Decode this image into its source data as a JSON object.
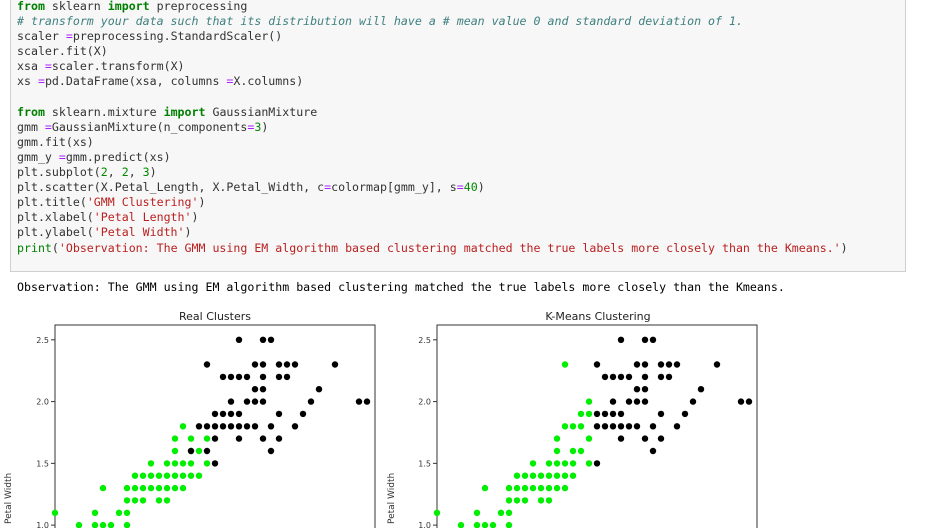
{
  "code_lines": [
    [
      [
        "kw",
        "from"
      ],
      [
        "",
        "sklearn "
      ],
      [
        "kw",
        "import"
      ],
      [
        "",
        "preprocessing"
      ]
    ],
    [
      [
        "cm",
        "# transform your data such that its distribution will have a # mean value 0 and standard deviation of 1."
      ]
    ],
    [
      [
        "",
        "scaler "
      ],
      [
        "op",
        "="
      ],
      [
        "",
        "preprocessing.StandardScaler()"
      ]
    ],
    [
      [
        "",
        "scaler.fit(X)"
      ]
    ],
    [
      [
        "",
        "xsa "
      ],
      [
        "op",
        "="
      ],
      [
        "",
        "scaler.transform(X)"
      ]
    ],
    [
      [
        "",
        "xs "
      ],
      [
        "op",
        "="
      ],
      [
        "",
        "pd.DataFrame(xsa, columns "
      ],
      [
        "op",
        "="
      ],
      [
        "",
        "X.columns)"
      ]
    ],
    [
      [
        "",
        ""
      ]
    ],
    [
      [
        "kw",
        "from"
      ],
      [
        "",
        "sklearn.mixture "
      ],
      [
        "kw",
        "import"
      ],
      [
        "",
        "GaussianMixture"
      ]
    ],
    [
      [
        "",
        "gmm "
      ],
      [
        "op",
        "="
      ],
      [
        "",
        "GaussianMixture(n_components"
      ],
      [
        "op",
        "="
      ],
      [
        "num",
        "3"
      ],
      [
        "",
        ")"
      ]
    ],
    [
      [
        "",
        "gmm.fit(xs)"
      ]
    ],
    [
      [
        "",
        "gmm_y "
      ],
      [
        "op",
        "="
      ],
      [
        "",
        "gmm.predict(xs)"
      ]
    ],
    [
      [
        "",
        "plt.subplot("
      ],
      [
        "num",
        "2"
      ],
      [
        "",
        ", "
      ],
      [
        "num",
        "2"
      ],
      [
        "",
        ", "
      ],
      [
        "num",
        "3"
      ],
      [
        "",
        ")"
      ]
    ],
    [
      [
        "",
        "plt.scatter(X.Petal_Length, X.Petal_Width, c"
      ],
      [
        "op",
        "="
      ],
      [
        "",
        "colormap[gmm_y], s"
      ],
      [
        "op",
        "="
      ],
      [
        "num",
        "40"
      ],
      [
        "",
        ")"
      ]
    ],
    [
      [
        "",
        "plt.title("
      ],
      [
        "st",
        "'GMM Clustering'"
      ],
      [
        "",
        ")"
      ]
    ],
    [
      [
        "",
        "plt.xlabel("
      ],
      [
        "st",
        "'Petal Length'"
      ],
      [
        "",
        ")"
      ]
    ],
    [
      [
        "",
        "plt.ylabel("
      ],
      [
        "st",
        "'Petal Width'"
      ],
      [
        "",
        ")"
      ]
    ],
    [
      [
        "kw2",
        "print"
      ],
      [
        "",
        "("
      ],
      [
        "st",
        "'Observation: The GMM using EM algorithm based clustering matched the true labels more closely than the Kmeans.'"
      ],
      [
        "",
        ")"
      ]
    ]
  ],
  "output_text": "Observation: The GMM using EM algorithm based clustering matched the true labels more closely than the Kmeans.",
  "colors": {
    "green": "#00ee00",
    "black": "#000000"
  },
  "chart_data": [
    {
      "type": "scatter",
      "title": "Real Clusters",
      "ylabel": "Petal Width",
      "xlabel": "",
      "ylim": [
        0.92,
        2.62
      ],
      "xlim": [
        3.0,
        7.0
      ],
      "yticks": [
        "1.0",
        "1.5",
        "2.0",
        "2.5"
      ],
      "ytick_values": [
        1.0,
        1.5,
        2.0,
        2.5
      ],
      "series": [
        {
          "color": "#00ee00",
          "points": [
            [
              3.0,
              1.1
            ],
            [
              3.3,
              1.0
            ],
            [
              3.5,
              1.0
            ],
            [
              3.6,
              1.0
            ],
            [
              3.7,
              1.0
            ],
            [
              3.9,
              1.0
            ],
            [
              3.5,
              1.1
            ],
            [
              3.8,
              1.1
            ],
            [
              3.9,
              1.1
            ],
            [
              3.6,
              1.3
            ],
            [
              3.9,
              1.2
            ],
            [
              4.0,
              1.2
            ],
            [
              3.9,
              1.3
            ],
            [
              4.0,
              1.3
            ],
            [
              4.1,
              1.3
            ],
            [
              4.2,
              1.3
            ],
            [
              4.3,
              1.3
            ],
            [
              4.4,
              1.3
            ],
            [
              4.5,
              1.3
            ],
            [
              4.1,
              1.2
            ],
            [
              4.3,
              1.2
            ],
            [
              4.4,
              1.2
            ],
            [
              4.6,
              1.3
            ],
            [
              4.0,
              1.4
            ],
            [
              4.1,
              1.4
            ],
            [
              4.2,
              1.4
            ],
            [
              4.3,
              1.4
            ],
            [
              4.4,
              1.4
            ],
            [
              4.5,
              1.4
            ],
            [
              4.6,
              1.4
            ],
            [
              4.5,
              1.5
            ],
            [
              4.4,
              1.5
            ],
            [
              4.6,
              1.5
            ],
            [
              4.7,
              1.4
            ],
            [
              4.8,
              1.4
            ],
            [
              4.7,
              1.5
            ],
            [
              4.9,
              1.5
            ],
            [
              4.2,
              1.5
            ],
            [
              4.5,
              1.6
            ],
            [
              4.7,
              1.6
            ],
            [
              4.8,
              1.6
            ],
            [
              4.9,
              1.7
            ],
            [
              4.6,
              1.8
            ],
            [
              4.5,
              1.7
            ],
            [
              4.7,
              1.7
            ]
          ]
        },
        {
          "color": "#000000",
          "points": [
            [
              5.3,
              2.5
            ],
            [
              5.6,
              2.5
            ],
            [
              5.7,
              2.5
            ],
            [
              4.9,
              2.3
            ],
            [
              5.5,
              2.3
            ],
            [
              5.6,
              2.3
            ],
            [
              5.8,
              2.3
            ],
            [
              5.9,
              2.3
            ],
            [
              6.0,
              2.3
            ],
            [
              6.5,
              2.3
            ],
            [
              5.1,
              2.2
            ],
            [
              5.2,
              2.2
            ],
            [
              5.3,
              2.2
            ],
            [
              5.4,
              2.2
            ],
            [
              5.6,
              2.2
            ],
            [
              5.8,
              2.2
            ],
            [
              5.9,
              2.2
            ],
            [
              5.5,
              2.1
            ],
            [
              5.6,
              2.1
            ],
            [
              6.3,
              2.1
            ],
            [
              5.2,
              2.0
            ],
            [
              5.4,
              2.0
            ],
            [
              5.5,
              2.0
            ],
            [
              5.6,
              2.0
            ],
            [
              6.2,
              2.0
            ],
            [
              6.8,
              2.0
            ],
            [
              6.9,
              2.0
            ],
            [
              5.0,
              1.9
            ],
            [
              5.1,
              1.9
            ],
            [
              5.2,
              1.9
            ],
            [
              5.3,
              1.9
            ],
            [
              5.8,
              1.9
            ],
            [
              6.1,
              1.9
            ],
            [
              5.0,
              1.8
            ],
            [
              5.1,
              1.8
            ],
            [
              5.2,
              1.8
            ],
            [
              5.4,
              1.8
            ],
            [
              5.3,
              1.8
            ],
            [
              5.5,
              1.8
            ],
            [
              5.7,
              1.8
            ],
            [
              6.0,
              1.8
            ],
            [
              4.8,
              1.8
            ],
            [
              4.9,
              1.8
            ],
            [
              5.0,
              1.7
            ],
            [
              5.3,
              1.7
            ],
            [
              5.6,
              1.7
            ],
            [
              5.8,
              1.7
            ],
            [
              4.7,
              1.6
            ],
            [
              4.9,
              1.6
            ],
            [
              5.7,
              1.6
            ],
            [
              5.0,
              1.5
            ]
          ]
        }
      ]
    },
    {
      "type": "scatter",
      "title": "K-Means Clustering",
      "ylabel": "Petal Width",
      "xlabel": "",
      "ylim": [
        0.92,
        2.62
      ],
      "xlim": [
        3.0,
        7.0
      ],
      "yticks": [
        "1.0",
        "1.5",
        "2.0",
        "2.5"
      ],
      "ytick_values": [
        1.0,
        1.5,
        2.0,
        2.5
      ],
      "series": [
        {
          "color": "#00ee00",
          "points": [
            [
              3.0,
              1.1
            ],
            [
              3.3,
              1.0
            ],
            [
              3.5,
              1.0
            ],
            [
              3.6,
              1.0
            ],
            [
              3.7,
              1.0
            ],
            [
              3.9,
              1.0
            ],
            [
              3.5,
              1.1
            ],
            [
              3.8,
              1.1
            ],
            [
              3.9,
              1.1
            ],
            [
              3.6,
              1.3
            ],
            [
              3.9,
              1.2
            ],
            [
              4.0,
              1.2
            ],
            [
              3.9,
              1.3
            ],
            [
              4.0,
              1.3
            ],
            [
              4.1,
              1.3
            ],
            [
              4.2,
              1.3
            ],
            [
              4.3,
              1.3
            ],
            [
              4.4,
              1.3
            ],
            [
              4.5,
              1.3
            ],
            [
              4.1,
              1.2
            ],
            [
              4.3,
              1.2
            ],
            [
              4.4,
              1.2
            ],
            [
              4.6,
              1.3
            ],
            [
              4.0,
              1.4
            ],
            [
              4.1,
              1.4
            ],
            [
              4.2,
              1.4
            ],
            [
              4.3,
              1.4
            ],
            [
              4.4,
              1.4
            ],
            [
              4.5,
              1.4
            ],
            [
              4.6,
              1.4
            ],
            [
              4.5,
              1.5
            ],
            [
              4.4,
              1.5
            ],
            [
              4.6,
              1.5
            ],
            [
              4.7,
              1.4
            ],
            [
              4.2,
              1.5
            ],
            [
              4.5,
              1.6
            ],
            [
              4.7,
              1.5
            ],
            [
              4.5,
              1.7
            ],
            [
              4.6,
              1.8
            ],
            [
              4.7,
              1.6
            ],
            [
              4.8,
              1.8
            ],
            [
              4.8,
              1.6
            ],
            [
              4.9,
              1.7
            ],
            [
              4.9,
              1.5
            ],
            [
              4.8,
              1.9
            ],
            [
              4.9,
              1.9
            ],
            [
              4.9,
              2.0
            ],
            [
              4.6,
              2.3
            ],
            [
              4.7,
              1.8
            ]
          ]
        },
        {
          "color": "#000000",
          "points": [
            [
              5.3,
              2.5
            ],
            [
              5.6,
              2.5
            ],
            [
              5.7,
              2.5
            ],
            [
              5.0,
              2.3
            ],
            [
              5.5,
              2.3
            ],
            [
              5.6,
              2.3
            ],
            [
              5.8,
              2.3
            ],
            [
              5.9,
              2.3
            ],
            [
              6.0,
              2.3
            ],
            [
              6.5,
              2.3
            ],
            [
              5.1,
              2.2
            ],
            [
              5.2,
              2.2
            ],
            [
              5.3,
              2.2
            ],
            [
              5.4,
              2.2
            ],
            [
              5.6,
              2.2
            ],
            [
              5.8,
              2.2
            ],
            [
              5.9,
              2.2
            ],
            [
              5.5,
              2.1
            ],
            [
              5.6,
              2.1
            ],
            [
              6.3,
              2.1
            ],
            [
              5.2,
              2.0
            ],
            [
              5.4,
              2.0
            ],
            [
              5.5,
              2.0
            ],
            [
              5.6,
              2.0
            ],
            [
              6.2,
              2.0
            ],
            [
              6.8,
              2.0
            ],
            [
              6.9,
              2.0
            ],
            [
              5.0,
              1.9
            ],
            [
              5.1,
              1.9
            ],
            [
              5.2,
              1.9
            ],
            [
              5.3,
              1.9
            ],
            [
              5.8,
              1.9
            ],
            [
              6.1,
              1.9
            ],
            [
              5.0,
              1.8
            ],
            [
              5.1,
              1.8
            ],
            [
              5.2,
              1.8
            ],
            [
              5.4,
              1.8
            ],
            [
              5.3,
              1.8
            ],
            [
              5.5,
              1.8
            ],
            [
              5.7,
              1.8
            ],
            [
              6.0,
              1.8
            ],
            [
              5.3,
              1.7
            ],
            [
              5.6,
              1.7
            ],
            [
              5.8,
              1.7
            ],
            [
              5.7,
              1.6
            ],
            [
              5.0,
              1.5
            ]
          ]
        }
      ]
    }
  ]
}
